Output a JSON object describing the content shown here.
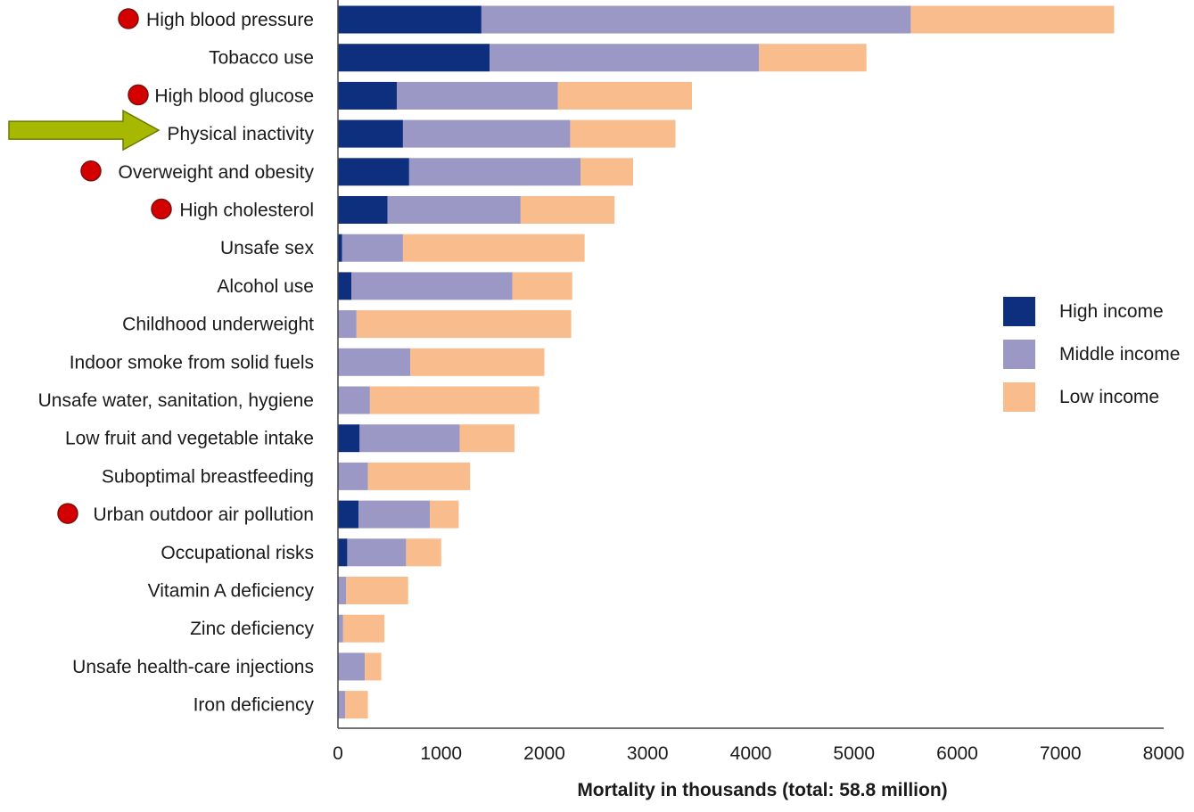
{
  "chart_data": {
    "type": "bar",
    "orientation": "horizontal",
    "stacked": true,
    "categories": [
      "High blood pressure",
      "Tobacco use",
      "High blood glucose",
      "Physical inactivity",
      "Overweight and obesity",
      "High cholesterol",
      "Unsafe sex",
      "Alcohol use",
      "Childhood underweight",
      "Indoor smoke from solid fuels",
      "Unsafe water, sanitation, hygiene",
      "Low fruit and vegetable intake",
      "Suboptimal breastfeeding",
      "Urban outdoor air pollution",
      "Occupational risks",
      "Vitamin A deficiency",
      "Zinc deficiency",
      "Unsafe health-care injections",
      "Iron deficiency"
    ],
    "series": [
      {
        "name": "High income",
        "color": "#0d2f7d",
        "values": [
          1390,
          1470,
          570,
          630,
          690,
          480,
          40,
          130,
          0,
          0,
          0,
          210,
          0,
          200,
          90,
          0,
          0,
          0,
          0
        ]
      },
      {
        "name": "Middle income",
        "color": "#9b98c6",
        "values": [
          4160,
          2610,
          1560,
          1620,
          1660,
          1290,
          590,
          1560,
          180,
          700,
          310,
          970,
          290,
          690,
          570,
          80,
          50,
          260,
          70
        ]
      },
      {
        "name": "Low income",
        "color": "#f9bc8c",
        "values": [
          1970,
          1040,
          1300,
          1020,
          510,
          910,
          1760,
          580,
          2080,
          1300,
          1640,
          530,
          990,
          280,
          340,
          600,
          400,
          160,
          220
        ]
      }
    ],
    "xlim": [
      0,
      8000
    ],
    "xticks": [
      "0",
      "1000",
      "2000",
      "3000",
      "4000",
      "5000",
      "6000",
      "7000",
      "8000"
    ],
    "xlabel": "Mortality in thousands (total: 58.8 million)",
    "ylabel": "",
    "title": "",
    "grid": false,
    "legend_position": "right",
    "highlighted_categories": [
      "High blood pressure",
      "High blood glucose",
      "Overweight and obesity",
      "High cholesterol",
      "Urban outdoor air pollution"
    ],
    "arrow_category": "Physical inactivity",
    "marker_color": "#d40000",
    "arrow_color": "#a7b800"
  }
}
